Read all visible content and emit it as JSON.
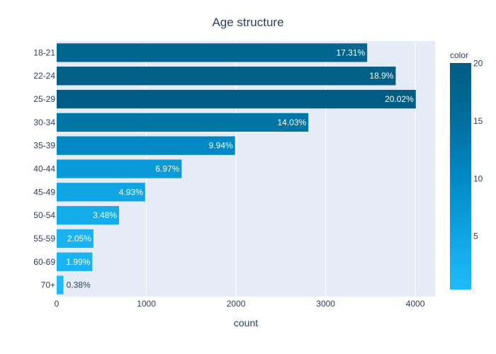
{
  "chart_data": {
    "type": "bar",
    "orientation": "horizontal",
    "title": "Age structure",
    "xlabel": "count",
    "ylabel": "",
    "xlim": [
      0,
      4220
    ],
    "x_ticks": [
      0,
      1000,
      2000,
      3000,
      4000
    ],
    "grid": true,
    "categories": [
      "18-21",
      "22-24",
      "25-29",
      "30-34",
      "35-39",
      "40-44",
      "45-49",
      "50-54",
      "55-59",
      "60-69",
      "70+"
    ],
    "values": [
      3463,
      3781,
      4005,
      2807,
      1989,
      1394,
      986,
      696,
      410,
      398,
      76
    ],
    "labels": [
      "17.31%",
      "18.9%",
      "20.02%",
      "14.03%",
      "9.94%",
      "6.97%",
      "4.93%",
      "3.48%",
      "2.05%",
      "1.99%",
      "0.38%"
    ],
    "color_values": [
      17.31,
      18.9,
      20.02,
      14.03,
      9.94,
      6.97,
      4.93,
      3.48,
      2.05,
      1.99,
      0.38
    ],
    "colorbar": {
      "title": "color",
      "ticks": [
        5,
        10,
        15,
        20
      ],
      "range": [
        0.38,
        20.02
      ],
      "colors": [
        "#1ebcf9",
        "#0fa3e2",
        "#0088c6",
        "#006e9c",
        "#005c82"
      ]
    }
  }
}
